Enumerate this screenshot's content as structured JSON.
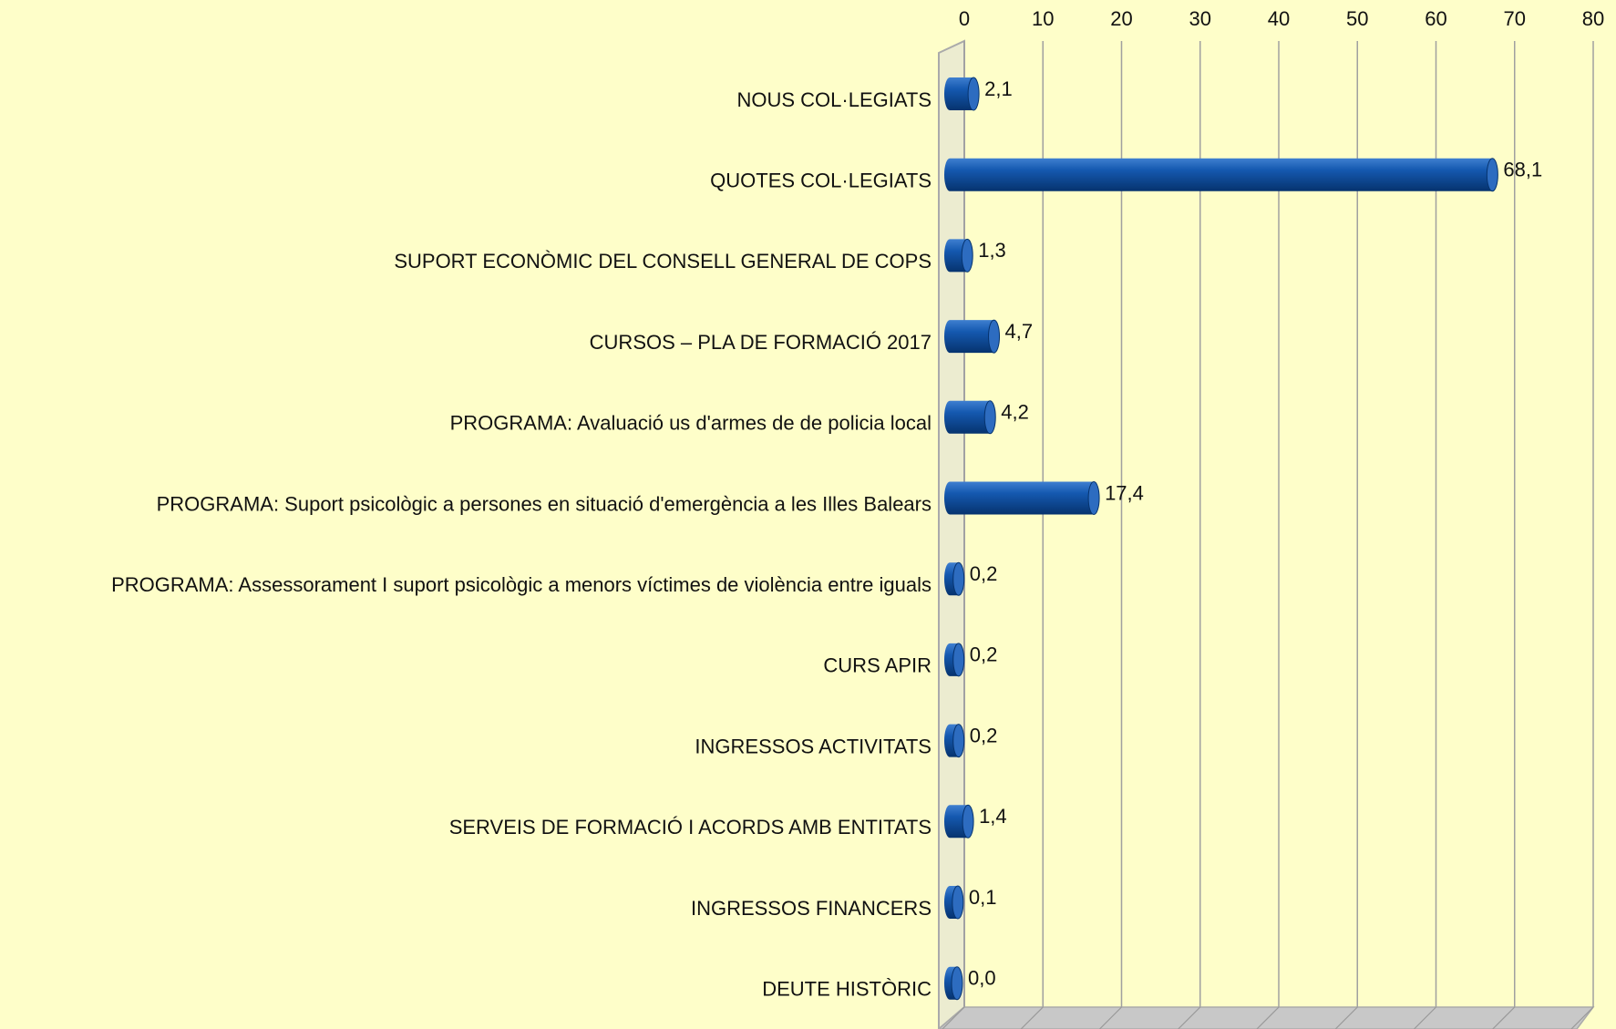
{
  "chart_data": {
    "type": "bar",
    "orientation": "horizontal",
    "categories": [
      "NOUS COL·LEGIATS",
      "QUOTES COL·LEGIATS",
      "SUPORT ECONÒMIC DEL CONSELL GENERAL DE COPS",
      "CURSOS – PLA DE FORMACIÓ 2017",
      "PROGRAMA: Avaluació us d'armes de de policia local",
      "PROGRAMA: Suport psicològic a persones en situació d'emergència a les Illes Balears",
      "PROGRAMA: Assessorament I suport psicològic a menors víctimes de violència entre iguals",
      "CURS APIR",
      "INGRESSOS ACTIVITATS",
      "SERVEIS DE FORMACIÓ I ACORDS AMB ENTITATS",
      "INGRESSOS FINANCERS",
      "DEUTE HISTÒRIC"
    ],
    "values": [
      2.1,
      68.1,
      1.3,
      4.7,
      4.2,
      17.4,
      0.2,
      0.2,
      0.2,
      1.4,
      0.1,
      0.0
    ],
    "value_labels": [
      "2,1",
      "68,1",
      "1,3",
      "4,7",
      "4,2",
      "17,4",
      "0,2",
      "0,2",
      "0,2",
      "1,4",
      "0,1",
      "0,0"
    ],
    "color": "#0d4f9e",
    "xlim": [
      0,
      80
    ],
    "xticks": [
      0,
      10,
      20,
      30,
      40,
      50,
      60,
      70,
      80
    ],
    "grid": true
  }
}
